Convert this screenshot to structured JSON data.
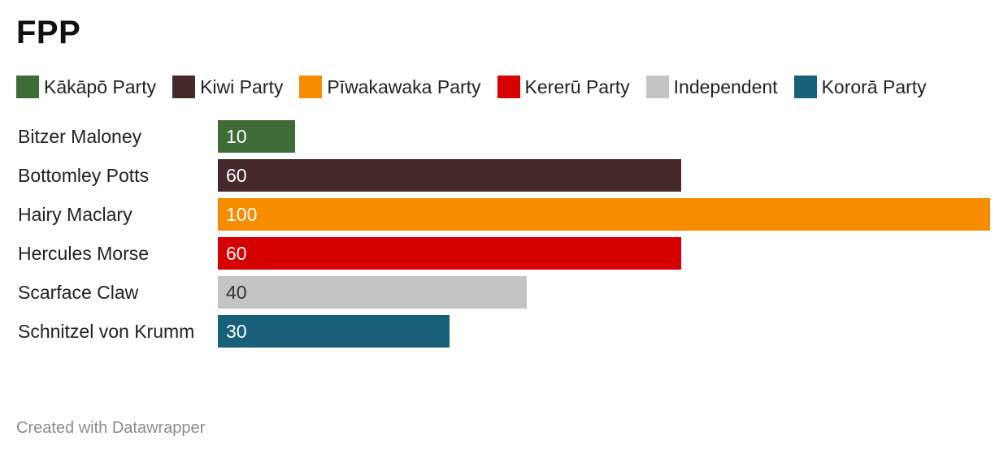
{
  "chart_data": {
    "type": "bar",
    "orientation": "horizontal",
    "title": "FPP",
    "categories": [
      "Bitzer Maloney",
      "Bottomley Potts",
      "Hairy Maclary",
      "Hercules Morse",
      "Scarface Claw",
      "Schnitzel von Krumm"
    ],
    "values": [
      10,
      60,
      100,
      60,
      40,
      30
    ],
    "parties": [
      "Kākāpō Party",
      "Kiwi Party",
      "Pīwakawaka Party",
      "Kererū Party",
      "Independent",
      "Kororā Party"
    ],
    "legend": [
      {
        "name": "Kākāpō Party",
        "color": "#3f6b37"
      },
      {
        "name": "Kiwi Party",
        "color": "#45292b"
      },
      {
        "name": "Pīwakawaka Party",
        "color": "#f78c00"
      },
      {
        "name": "Kererū Party",
        "color": "#d60000"
      },
      {
        "name": "Independent",
        "color": "#c4c4c4"
      },
      {
        "name": "Kororā Party",
        "color": "#18607a"
      }
    ],
    "legend_position": "top-left",
    "xlim": [
      0,
      100
    ],
    "grid": false,
    "data_labels": true
  },
  "footer": "Created with Datawrapper"
}
